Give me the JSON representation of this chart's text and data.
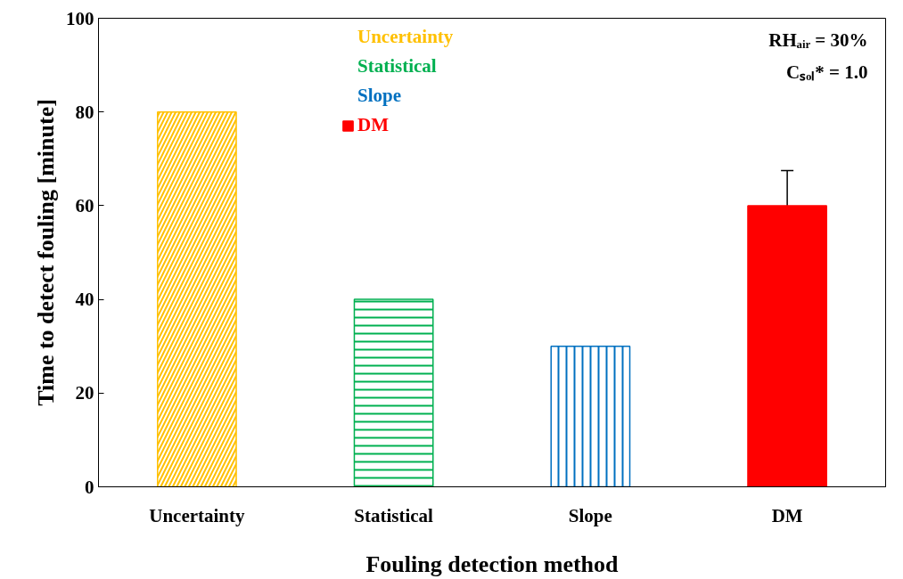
{
  "chart_data": {
    "type": "bar",
    "xlabel": "Fouling detection method",
    "ylabel": "Time to detect fouling [minute]",
    "categories": [
      "Uncertainty",
      "Statistical",
      "Slope",
      "DM"
    ],
    "series": [
      {
        "name": "Uncertainty",
        "color": "#ffc000",
        "values": [
          80,
          null,
          null,
          null
        ]
      },
      {
        "name": "Statistical",
        "color": "#00b050",
        "values": [
          null,
          40,
          null,
          null
        ]
      },
      {
        "name": "Slope",
        "color": "#0070c0",
        "values": [
          null,
          null,
          30,
          null
        ]
      },
      {
        "name": "DM",
        "color": "#ff0000",
        "values": [
          null,
          null,
          null,
          60
        ],
        "errors": [
          null,
          null,
          null,
          7.5
        ]
      }
    ],
    "ylim": [
      0,
      100
    ],
    "yticks": [
      0,
      20,
      40,
      60,
      80,
      100
    ],
    "grid": false,
    "legend": "top",
    "annotations": [
      "RHₐᵢᵣ = 30%",
      "Cₛₒₗ* = 1.0"
    ]
  }
}
